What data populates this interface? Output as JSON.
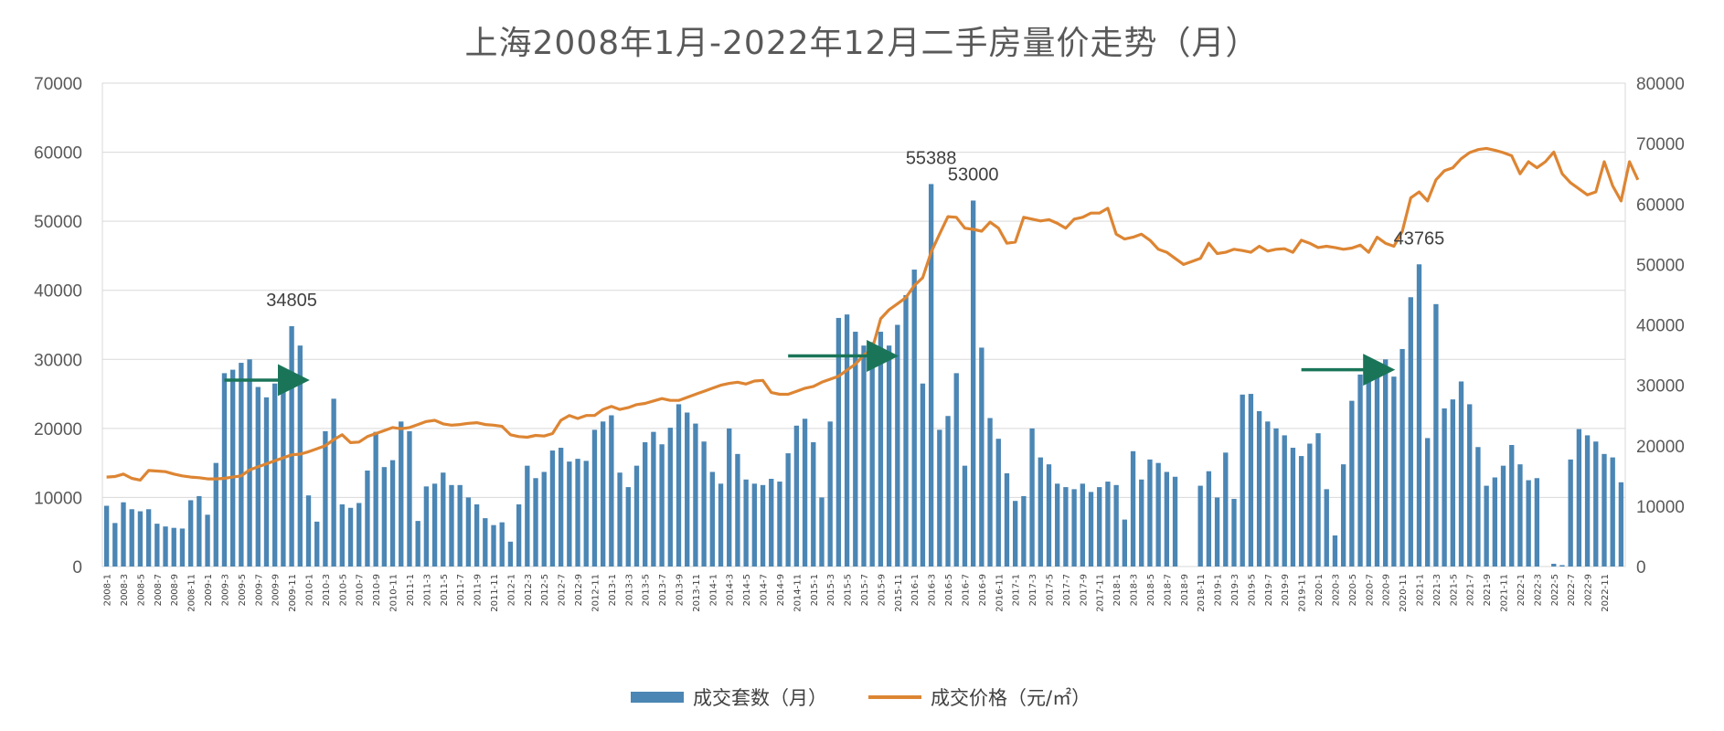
{
  "chart_data": {
    "type": "bar+line",
    "title": "上海2008年1月-2022年12月二手房量价走势（月）",
    "y_left": {
      "min": 0,
      "max": 70000,
      "ticks": [
        "0",
        "10000",
        "20000",
        "30000",
        "40000",
        "50000",
        "60000",
        "70000"
      ]
    },
    "y_right": {
      "min": 0,
      "max": 80000,
      "ticks": [
        "0",
        "10000",
        "20000",
        "30000",
        "40000",
        "50000",
        "60000",
        "70000",
        "80000"
      ]
    },
    "x_tick_labels": [
      "2008-1",
      "2008-3",
      "2008-5",
      "2008-7",
      "2008-9",
      "2008-11",
      "2009-1",
      "2009-3",
      "2009-5",
      "2009-7",
      "2009-9",
      "2009-11",
      "2010-1",
      "2010-3",
      "2010-5",
      "2010-7",
      "2010-9",
      "2010-11",
      "2011-1",
      "2011-3",
      "2011-5",
      "2011-7",
      "2011-9",
      "2011-11",
      "2012-1",
      "2012-3",
      "2012-5",
      "2012-7",
      "2012-9",
      "2012-11",
      "2013-1",
      "2013-3",
      "2013-5",
      "2013-7",
      "2013-9",
      "2013-11",
      "2014-1",
      "2014-3",
      "2014-5",
      "2014-7",
      "2014-9",
      "2014-11",
      "2015-1",
      "2015-3",
      "2015-5",
      "2015-7",
      "2015-9",
      "2015-11",
      "2016-1",
      "2016-3",
      "2016-5",
      "2016-7",
      "2016-9",
      "2016-11",
      "2017-1",
      "2017-3",
      "2017-5",
      "2017-7",
      "2017-9",
      "2017-11",
      "2018-1",
      "2018-3",
      "2018-5",
      "2018-7",
      "2018-9",
      "2018-11",
      "2019-1",
      "2019-3",
      "2019-5",
      "2019-7",
      "2019-9",
      "2019-11",
      "2020-1",
      "2020-3",
      "2020-5",
      "2020-7",
      "2020-9",
      "2020-11",
      "2021-1",
      "2021-3",
      "2021-5",
      "2021-7",
      "2021-9",
      "2021-11",
      "2022-1",
      "2022-3",
      "2022-5",
      "2022-7",
      "2022-9",
      "2022-11"
    ],
    "series": [
      {
        "name": "成交套数（月）",
        "type": "bar",
        "axis": "left",
        "color": "#4b86b4",
        "values": [
          8800,
          6300,
          9300,
          8300,
          8000,
          8300,
          6200,
          5800,
          5600,
          5500,
          9600,
          10200,
          7500,
          15000,
          28000,
          28500,
          29500,
          30000,
          26000,
          24500,
          26500,
          26600,
          34805,
          32000,
          10300,
          6500,
          19600,
          24300,
          9000,
          8500,
          9200,
          13900,
          19500,
          14400,
          15400,
          21000,
          19600,
          6600,
          11600,
          12000,
          13600,
          11800,
          11800,
          10000,
          9000,
          7000,
          6000,
          6400,
          3600,
          9000,
          14600,
          12800,
          13700,
          16800,
          17200,
          15200,
          15600,
          15300,
          19800,
          21000,
          21900,
          13600,
          11500,
          14600,
          18000,
          19500,
          17700,
          20100,
          23500,
          22300,
          20700,
          18100,
          13700,
          12000,
          20000,
          16300,
          12600,
          12000,
          11800,
          12700,
          12300,
          16400,
          20400,
          21400,
          18000,
          10000,
          21000,
          36000,
          36500,
          34000,
          32000,
          32500,
          34000,
          32000,
          35000,
          39300,
          43000,
          26500,
          55388,
          19800,
          21800,
          28000,
          14600,
          53000,
          31700,
          21500,
          18500,
          13500,
          9500,
          10200,
          20000,
          15800,
          14800,
          12000,
          11500,
          11200,
          12000,
          10800,
          11500,
          12300,
          11800,
          6800,
          16700,
          12600,
          15500,
          15000,
          13700,
          13000,
          null,
          null,
          11700,
          13800,
          10000,
          16500,
          9800,
          24900,
          25000,
          22500,
          21000,
          20000,
          19000,
          17200,
          16000,
          17800,
          19300,
          11200,
          4500,
          14800,
          24000,
          27800,
          28500,
          28800,
          30000,
          27500,
          31500,
          39000,
          43765,
          18600,
          38000,
          22900,
          24200,
          26800,
          23500,
          17300,
          11700,
          12900,
          14600,
          17600,
          14800,
          12500,
          12800,
          null,
          400,
          200,
          15500,
          19900,
          19000,
          18100,
          16300,
          15800,
          12200
        ]
      },
      {
        "name": "成交价格（元/㎡）",
        "type": "line",
        "axis": "right",
        "color": "#dd8533",
        "values": [
          14800,
          14900,
          15300,
          14600,
          14300,
          15900,
          15800,
          15700,
          15300,
          15000,
          14800,
          14700,
          14500,
          14500,
          14600,
          14800,
          15000,
          16000,
          16500,
          17000,
          17500,
          18000,
          18500,
          18600,
          19000,
          19500,
          20000,
          21000,
          21800,
          20500,
          20600,
          21500,
          22000,
          22500,
          23000,
          22800,
          23000,
          23500,
          24000,
          24200,
          23600,
          23400,
          23500,
          23700,
          23800,
          23500,
          23400,
          23200,
          21800,
          21500,
          21400,
          21700,
          21600,
          22000,
          24200,
          25000,
          24500,
          25000,
          25000,
          26000,
          26500,
          26000,
          26300,
          26800,
          27000,
          27400,
          27800,
          27500,
          27500,
          28000,
          28500,
          29000,
          29500,
          30000,
          30300,
          30500,
          30200,
          30700,
          30800,
          28800,
          28500,
          28500,
          29000,
          29500,
          29800,
          30500,
          31000,
          31500,
          32500,
          33500,
          35000,
          36000,
          41000,
          42500,
          43500,
          44500,
          46500,
          47800,
          52000,
          55000,
          57900,
          57800,
          56000,
          55800,
          55500,
          57000,
          56000,
          53500,
          53700,
          57800,
          57500,
          57200,
          57400,
          56800,
          56000,
          57500,
          57800,
          58500,
          58500,
          59300,
          55000,
          54200,
          54500,
          55000,
          54000,
          52500,
          52000,
          51000,
          50000,
          50500,
          51000,
          53500,
          51800,
          52000,
          52500,
          52300,
          52000,
          53000,
          52200,
          52500,
          52600,
          52000,
          54000,
          53500,
          52800,
          53000,
          52800,
          52500,
          52700,
          53200,
          52000,
          54500,
          53500,
          53000,
          55500,
          61000,
          62000,
          60500,
          64000,
          65500,
          66000,
          67500,
          68500,
          69000,
          69200,
          68900,
          68500,
          68000,
          65000,
          67000,
          66000,
          67000,
          68600,
          65000,
          63500,
          62500,
          61500,
          62000,
          67000,
          63000,
          60500,
          67000,
          64000
        ]
      }
    ],
    "data_labels": [
      "34805",
      "55388",
      "53000",
      "43765"
    ],
    "legend": {
      "position": "bottom",
      "entries": [
        "成交套数（月）",
        "成交价格（元/㎡）"
      ]
    },
    "annotations": "three green arrows over the 2009, 2015-2016 and 2020-2021 peaks"
  },
  "colors": {
    "bar": "#4b86b4",
    "line": "#dd8533",
    "arrow": "#1a7558",
    "grid": "#d9d9d9",
    "text": "#595959"
  }
}
